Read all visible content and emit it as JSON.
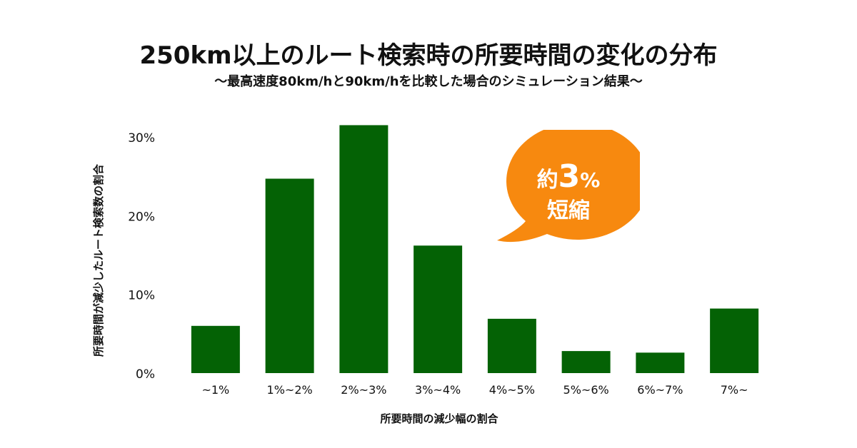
{
  "title": "250km以上のルート検索時の所要時間の変化の分布",
  "subtitle": "〜最高速度80km/hと90km/hを比較した場合のシミュレーション結果〜",
  "callout": {
    "prefix": "約",
    "number": "3",
    "unit": "%",
    "line2": "短縮",
    "color": "#f7890f"
  },
  "chart_data": {
    "type": "bar",
    "categories": [
      "~1%",
      "1%~2%",
      "2%~3%",
      "3%~4%",
      "4%~5%",
      "5%~6%",
      "6%~7%",
      "7%~"
    ],
    "values": [
      6,
      24.7,
      31.5,
      16.2,
      6.9,
      2.8,
      2.6,
      8.2
    ],
    "xlabel": "所要時間の減少幅の割合",
    "ylabel": "所要時間が減少したルート検索数の割合",
    "ylim": [
      0,
      30
    ],
    "yticks": [
      0,
      10,
      20,
      30
    ],
    "ytick_labels": [
      "0%",
      "10%",
      "20%",
      "30%"
    ],
    "grid": false,
    "bar_color": "#046205"
  }
}
